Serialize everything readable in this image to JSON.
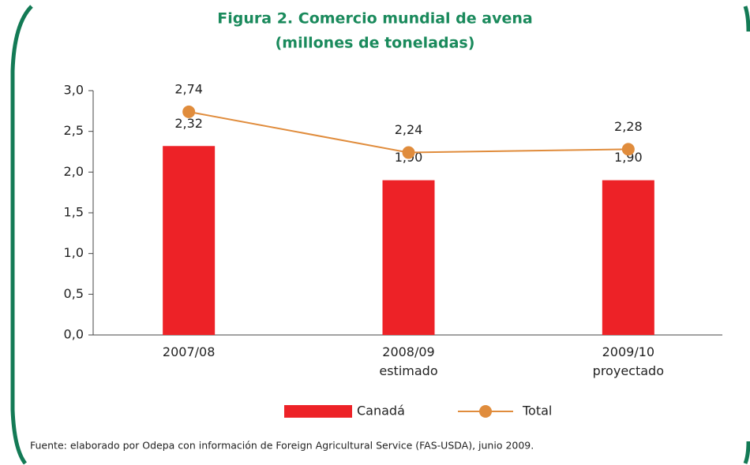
{
  "chart_data": {
    "type": "bar-line",
    "title": "Figura 2. Comercio mundial de avena",
    "subtitle": "(millones de toneladas)",
    "categories": [
      "2007/08",
      "2008/09\nestimado",
      "2009/10\nproyectado"
    ],
    "series": [
      {
        "name": "Canadá",
        "type": "bar",
        "color": "#ed2227",
        "values": [
          2.32,
          1.9,
          1.9
        ],
        "value_labels": [
          "2,32",
          "1,90",
          "1,90"
        ]
      },
      {
        "name": "Total",
        "type": "line",
        "color": "#e08c3c",
        "values": [
          2.74,
          2.24,
          2.28
        ],
        "value_labels": [
          "2,74",
          "2,24",
          "2,28"
        ]
      }
    ],
    "ylim": [
      0,
      3
    ],
    "yticks": [
      {
        "value": 0,
        "label": "0,0"
      },
      {
        "value": 0.5,
        "label": "0,5"
      },
      {
        "value": 1,
        "label": "1,0"
      },
      {
        "value": 1.5,
        "label": "1,5"
      },
      {
        "value": 2,
        "label": "2,0"
      },
      {
        "value": 2.5,
        "label": "2,5"
      },
      {
        "value": 3,
        "label": "3,0"
      }
    ],
    "legend": "bottom",
    "source": "Fuente: elaborado por Odepa con información de Foreign Agricultural Service (FAS-USDA), junio 2009."
  }
}
